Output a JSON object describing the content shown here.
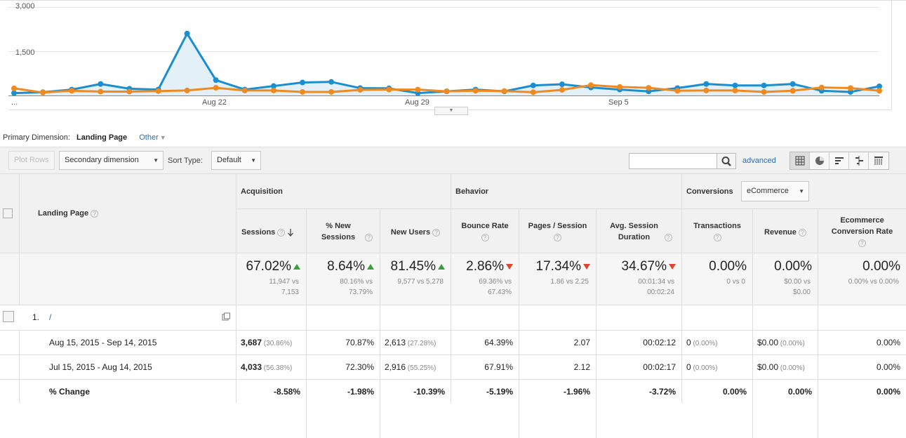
{
  "chart_data": {
    "type": "line",
    "y_ticks": [
      "3,000",
      "1,500"
    ],
    "x_ticks": [
      "...",
      "Aug 22",
      "Aug 29",
      "Sep 5"
    ],
    "ylim": [
      0,
      3000
    ],
    "series": [
      {
        "color": "#1a8ed0",
        "values": [
          80,
          110,
          200,
          390,
          230,
          200,
          2100,
          520,
          200,
          320,
          440,
          460,
          250,
          240,
          80,
          140,
          200,
          140,
          340,
          380,
          270,
          200,
          140,
          250,
          390,
          340,
          340,
          390,
          160,
          120,
          310
        ]
      },
      {
        "color": "#f08a1f",
        "values": [
          240,
          100,
          160,
          130,
          130,
          150,
          170,
          260,
          170,
          170,
          120,
          120,
          190,
          200,
          200,
          140,
          160,
          150,
          110,
          190,
          350,
          290,
          260,
          160,
          170,
          170,
          120,
          160,
          270,
          250,
          160
        ]
      }
    ],
    "grid": true
  },
  "primary": {
    "label": "Primary Dimension:",
    "value": "Landing Page",
    "other": "Other"
  },
  "toolbar": {
    "plot_rows": "Plot Rows",
    "secondary": "Secondary dimension",
    "sort_label": "Sort Type:",
    "sort_value": "Default",
    "advanced": "advanced"
  },
  "table": {
    "landing_page_header": "Landing Page",
    "groups": {
      "acquisition": "Acquisition",
      "behavior": "Behavior",
      "conversions": "Conversions",
      "conv_select": "eCommerce"
    },
    "columns": [
      {
        "label": "Sessions"
      },
      {
        "label": "% New Sessions"
      },
      {
        "label": "New Users"
      },
      {
        "label": "Bounce Rate"
      },
      {
        "label": "Pages / Session"
      },
      {
        "label": "Avg. Session Duration"
      },
      {
        "label": "Transactions"
      },
      {
        "label": "Revenue"
      },
      {
        "label": "Ecommerce Conversion Rate"
      }
    ],
    "summary": [
      {
        "big": "67.02%",
        "dir": "up",
        "sub1": "11,947 vs",
        "sub2": "7,153"
      },
      {
        "big": "8.64%",
        "dir": "up",
        "sub1": "80.16% vs",
        "sub2": "73.79%"
      },
      {
        "big": "81.45%",
        "dir": "up",
        "sub1": "9,577 vs 5,278",
        "sub2": ""
      },
      {
        "big": "2.86%",
        "dir": "down",
        "sub1": "69.36% vs",
        "sub2": "67.43%"
      },
      {
        "big": "17.34%",
        "dir": "down",
        "sub1": "1.86 vs 2.25",
        "sub2": ""
      },
      {
        "big": "34.67%",
        "dir": "down",
        "sub1": "00:01:34 vs",
        "sub2": "00:02:24"
      },
      {
        "big": "0.00%",
        "dir": "",
        "sub1": "0 vs 0",
        "sub2": ""
      },
      {
        "big": "0.00%",
        "dir": "",
        "sub1": "$0.00 vs",
        "sub2": "$0.00"
      },
      {
        "big": "0.00%",
        "dir": "",
        "sub1": "0.00% vs 0.00%",
        "sub2": ""
      }
    ],
    "row": {
      "index": "1.",
      "page": "/"
    },
    "rows": [
      {
        "label": "Aug 15, 2015 - Sep 14, 2015",
        "cells": [
          [
            "3,687",
            "(30.86%)"
          ],
          [
            "70.87%",
            ""
          ],
          [
            "2,613",
            "(27.28%)"
          ],
          [
            "64.39%",
            ""
          ],
          [
            "2.07",
            ""
          ],
          [
            "00:02:12",
            ""
          ],
          [
            "0",
            "(0.00%)"
          ],
          [
            "$0.00",
            "(0.00%)"
          ],
          [
            "0.00%",
            ""
          ]
        ]
      },
      {
        "label": "Jul 15, 2015 - Aug 14, 2015",
        "cells": [
          [
            "4,033",
            "(56.38%)"
          ],
          [
            "72.30%",
            ""
          ],
          [
            "2,916",
            "(55.25%)"
          ],
          [
            "67.91%",
            ""
          ],
          [
            "2.12",
            ""
          ],
          [
            "00:02:17",
            ""
          ],
          [
            "0",
            "(0.00%)"
          ],
          [
            "$0.00",
            "(0.00%)"
          ],
          [
            "0.00%",
            ""
          ]
        ]
      },
      {
        "label": "% Change",
        "cells": [
          [
            "-8.58%",
            ""
          ],
          [
            "-1.98%",
            ""
          ],
          [
            "-10.39%",
            ""
          ],
          [
            "-5.19%",
            ""
          ],
          [
            "-1.96%",
            ""
          ],
          [
            "-3.72%",
            ""
          ],
          [
            "0.00%",
            ""
          ],
          [
            "0.00%",
            ""
          ],
          [
            "0.00%",
            ""
          ]
        ]
      }
    ]
  }
}
